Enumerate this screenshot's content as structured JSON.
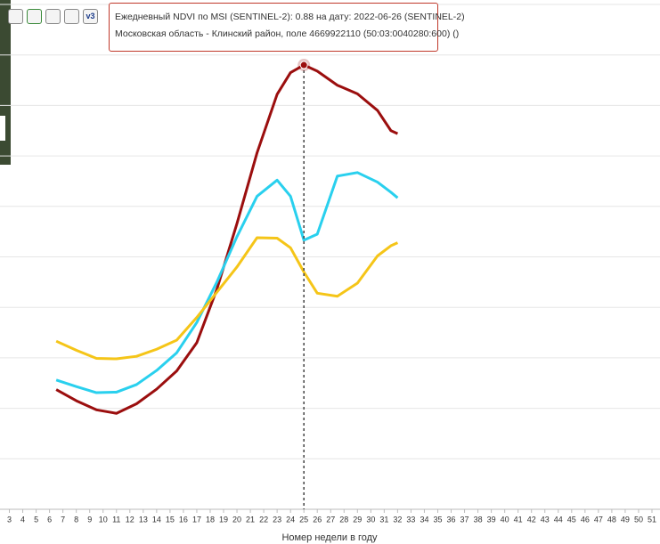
{
  "toolbar": {
    "version": "v3"
  },
  "chart_data": {
    "type": "line",
    "x_label": "Номер недели в году",
    "tooltip": [
      "Ежедневный NDVI по MSI (SENTINEL-2): 0.88 на дату: 2022-06-26 (SENTINEL-2)",
      "Московская область - Клинский район, поле 4669922110 (50:03:0040280:600) ()"
    ],
    "x": [
      6.5,
      8,
      9.5,
      11,
      12.5,
      14,
      15.5,
      17,
      18.5,
      20,
      21.5,
      23,
      24,
      25,
      26,
      27.5,
      29,
      30.5,
      31.5,
      32
    ],
    "series": [
      {
        "color": "#9b0e0e",
        "values": [
          0.237,
          0.215,
          0.197,
          0.19,
          0.209,
          0.238,
          0.274,
          0.33,
          0.436,
          0.566,
          0.706,
          0.822,
          0.865,
          0.88,
          0.868,
          0.84,
          0.823,
          0.79,
          0.75,
          0.744
        ]
      },
      {
        "color": "#29d0ee",
        "values": [
          0.256,
          0.243,
          0.231,
          0.232,
          0.247,
          0.275,
          0.31,
          0.37,
          0.45,
          0.54,
          0.62,
          0.652,
          0.62,
          0.533,
          0.545,
          0.66,
          0.667,
          0.648,
          0.628,
          0.617
        ]
      },
      {
        "color": "#f5c518",
        "values": [
          0.333,
          0.315,
          0.299,
          0.298,
          0.303,
          0.317,
          0.335,
          0.38,
          0.43,
          0.48,
          0.538,
          0.537,
          0.518,
          0.47,
          0.428,
          0.422,
          0.448,
          0.502,
          0.522,
          0.528
        ]
      }
    ],
    "highlight_index": 13,
    "xlim": [
      2.3,
      51.6
    ],
    "xticks": [
      3,
      4,
      5,
      6,
      7,
      8,
      9,
      10,
      11,
      12,
      13,
      14,
      15,
      16,
      17,
      18,
      19,
      20,
      21,
      22,
      23,
      24,
      25,
      26,
      27,
      28,
      29,
      30,
      31,
      32,
      33,
      34,
      35,
      36,
      37,
      38,
      39,
      40,
      41,
      42,
      43,
      44,
      45,
      46,
      47,
      48,
      49,
      50,
      51
    ],
    "ylim": [
      0,
      1.0
    ],
    "yticks": [
      0,
      0.1,
      0.2,
      0.3,
      0.4,
      0.5,
      0.6,
      0.7,
      0.8,
      0.9,
      1.0
    ],
    "grid": true
  }
}
